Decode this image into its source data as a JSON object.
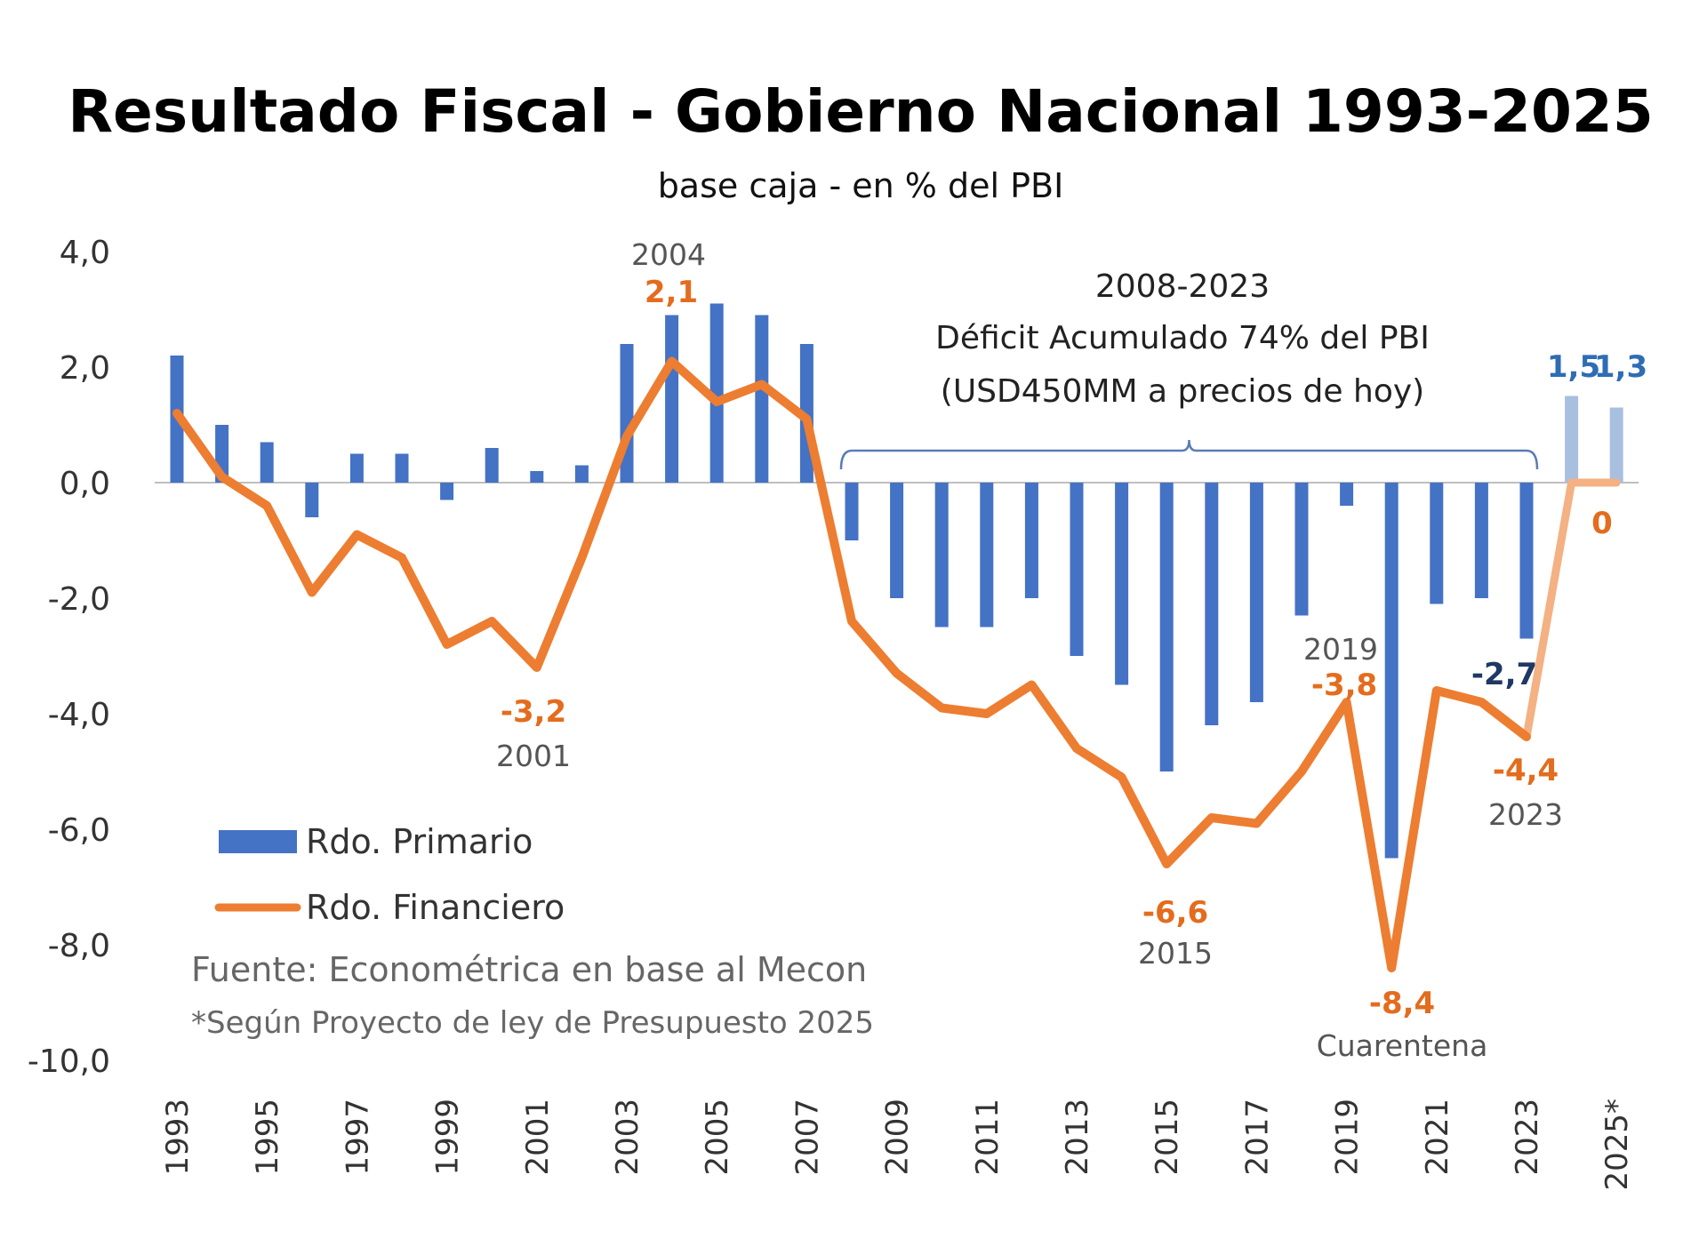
{
  "chart_data": {
    "type": "bar+line",
    "title": "Resultado Fiscal - Gobierno Nacional 1993-2025",
    "subtitle": "base caja - en % del PBI",
    "xlabel": "",
    "ylabel": "",
    "ylim": [
      -10,
      4
    ],
    "yticks": [
      4,
      2,
      0,
      -2,
      -4,
      -6,
      -8,
      -10
    ],
    "ytick_labels": [
      "4,0",
      "2,0",
      "0,0",
      "-2,0",
      "-4,0",
      "-6,0",
      "-8,0",
      "-10,0"
    ],
    "grid": false,
    "categories": [
      1993,
      1994,
      1995,
      1996,
      1997,
      1998,
      1999,
      2000,
      2001,
      2002,
      2003,
      2004,
      2005,
      2006,
      2007,
      2008,
      2009,
      2010,
      2011,
      2012,
      2013,
      2014,
      2015,
      2016,
      2017,
      2018,
      2019,
      2020,
      2021,
      2022,
      2023,
      2024,
      2025
    ],
    "xtick_labels": [
      "1993",
      "1995",
      "1997",
      "1999",
      "2001",
      "2003",
      "2005",
      "2007",
      "2009",
      "2011",
      "2013",
      "2015",
      "2017",
      "2019",
      "2021",
      "2023",
      "2025*"
    ],
    "xtick_years": [
      1993,
      1995,
      1997,
      1999,
      2001,
      2003,
      2005,
      2007,
      2009,
      2011,
      2013,
      2015,
      2017,
      2019,
      2021,
      2023,
      2025
    ],
    "series": [
      {
        "name": "Rdo. Primario",
        "type": "bar",
        "color": "#4472C4",
        "projected_color": "#A9BFE0",
        "projected_from": 2024,
        "values": [
          2.2,
          1.0,
          0.7,
          -0.6,
          0.5,
          0.5,
          -0.3,
          0.6,
          0.2,
          0.3,
          2.4,
          2.9,
          3.1,
          2.9,
          2.4,
          -1.0,
          -2.0,
          -2.5,
          -2.5,
          -2.0,
          -3.0,
          -3.5,
          -5.0,
          -4.2,
          -3.8,
          -2.3,
          -0.4,
          -6.5,
          -2.1,
          -2.0,
          -2.7,
          1.5,
          1.3
        ]
      },
      {
        "name": "Rdo. Financiero",
        "type": "line",
        "color": "#ED7D31",
        "projected_color": "#F4B183",
        "projected_from": 2024,
        "values": [
          1.2,
          0.1,
          -0.4,
          -1.9,
          -0.9,
          -1.3,
          -2.8,
          -2.4,
          -3.2,
          -1.3,
          0.8,
          2.1,
          1.4,
          1.7,
          1.1,
          -2.4,
          -3.3,
          -3.9,
          -4.0,
          -3.5,
          -4.6,
          -5.1,
          -6.6,
          -5.8,
          -5.9,
          -5.0,
          -3.8,
          -8.4,
          -3.6,
          -3.8,
          -4.4,
          0.0,
          0.0
        ]
      }
    ],
    "legend": {
      "position": "bottom-left",
      "items": [
        "Rdo. Primario",
        "Rdo. Financiero"
      ]
    },
    "annotations": [
      {
        "year": 2001,
        "value_label": "-3,2",
        "year_label": "2001",
        "series": "Rdo. Financiero"
      },
      {
        "year": 2004,
        "value_label": "2,1",
        "year_label": "2004",
        "series": "Rdo. Financiero"
      },
      {
        "year": 2015,
        "value_label": "-6,6",
        "year_label": "2015",
        "series": "Rdo. Financiero"
      },
      {
        "year": 2019,
        "value_label": "-3,8",
        "year_label": "2019",
        "series": "Rdo. Financiero"
      },
      {
        "year": 2020,
        "value_label": "-8,4",
        "year_label": "Cuarentena",
        "series": "Rdo. Financiero"
      },
      {
        "year": 2023,
        "value_label": "-4,4",
        "year_label": "2023",
        "series": "Rdo. Financiero"
      },
      {
        "year": 2023,
        "value_label": "-2,7",
        "series": "Rdo. Primario"
      },
      {
        "year": 2024,
        "value_label": "1,5",
        "series": "Rdo. Primario"
      },
      {
        "year": 2025,
        "value_label": "1,3",
        "series": "Rdo. Primario"
      },
      {
        "year": 2025,
        "value_label": "0",
        "series": "Rdo. Financiero"
      }
    ],
    "bracket": {
      "from_year": 2008,
      "to_year": 2023,
      "lines": [
        "2008-2023",
        "Déficit Acumulado 74% del PBI",
        "(USD450MM a precios de hoy)"
      ]
    },
    "source": "Fuente: Econométrica en base al Mecon",
    "note": "*Según Proyecto de ley de Presupuesto 2025"
  }
}
